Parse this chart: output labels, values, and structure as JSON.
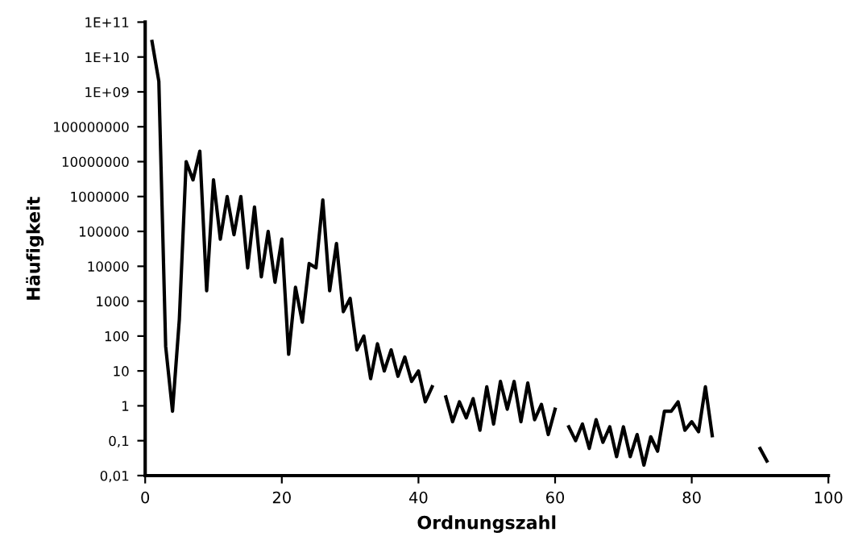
{
  "chart_data": {
    "type": "line",
    "xlabel": "Ordnungszahl",
    "ylabel": "Häufigkeit",
    "log": "y",
    "x": [
      1,
      2,
      3,
      4,
      5,
      6,
      7,
      8,
      9,
      10,
      11,
      12,
      13,
      14,
      15,
      16,
      17,
      18,
      19,
      20,
      21,
      22,
      23,
      24,
      25,
      26,
      27,
      28,
      29,
      30,
      31,
      32,
      33,
      34,
      35,
      36,
      37,
      38,
      39,
      40,
      41,
      42,
      43,
      44,
      45,
      46,
      47,
      48,
      49,
      50,
      51,
      52,
      53,
      54,
      55,
      56,
      57,
      58,
      59,
      60,
      61,
      62,
      63,
      64,
      65,
      66,
      67,
      68,
      69,
      70,
      71,
      72,
      73,
      74,
      75,
      76,
      77,
      78,
      79,
      80,
      81,
      82,
      83,
      84,
      85,
      86,
      87,
      88,
      89,
      90,
      91
    ],
    "series": [
      {
        "color": "#000000",
        "values": [
          28000000000.0,
          2000000000.0,
          50,
          0.7,
          300,
          10000000.0,
          3000000.0,
          20000000.0,
          2000,
          3000000.0,
          60000.0,
          1000000.0,
          80000.0,
          1000000.0,
          9000,
          500000.0,
          5000,
          100000.0,
          3500,
          60000.0,
          30,
          2500,
          250,
          12000.0,
          9000,
          800000.0,
          2000,
          45000.0,
          500,
          1200,
          40,
          100,
          6,
          60,
          10,
          40,
          7,
          25,
          5,
          10,
          1.3,
          3.5,
          null,
          1.8,
          0.35,
          1.3,
          0.45,
          1.6,
          0.2,
          3.5,
          0.3,
          5,
          0.8,
          5,
          0.35,
          4.5,
          0.4,
          1.1,
          0.15,
          0.8,
          null,
          0.25,
          0.1,
          0.3,
          0.06,
          0.4,
          0.09,
          0.25,
          0.035,
          0.25,
          0.035,
          0.15,
          0.02,
          0.13,
          0.05,
          0.7,
          0.7,
          1.3,
          0.2,
          0.35,
          0.18,
          3.5,
          0.14,
          null,
          null,
          null,
          null,
          null,
          null,
          0.06,
          0.026
        ]
      }
    ],
    "xlim": [
      0,
      100
    ],
    "xticks": [
      0,
      20,
      40,
      60,
      80,
      100
    ],
    "ylim": [
      0.01,
      100000000000.0
    ],
    "yticks": [
      {
        "value": 0.01,
        "label": "0,01"
      },
      {
        "value": 0.1,
        "label": "0,1"
      },
      1,
      10,
      100,
      1000,
      10000,
      100000,
      1000000,
      10000000,
      100000000,
      {
        "value": 1000000000.0,
        "label": "1E+09"
      },
      {
        "value": 10000000000.0,
        "label": "1E+10"
      },
      {
        "value": 100000000000.0,
        "label": "1E+11"
      }
    ],
    "grid": false,
    "legend": false,
    "marker": "none",
    "line_style": "solid"
  }
}
